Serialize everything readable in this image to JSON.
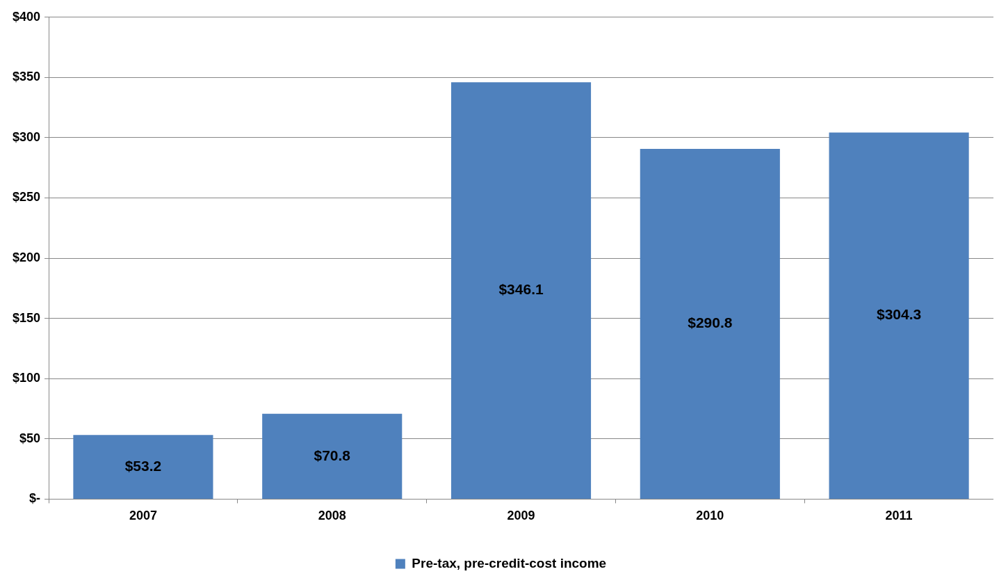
{
  "chart_data": {
    "type": "bar",
    "categories": [
      "2007",
      "2008",
      "2009",
      "2010",
      "2011"
    ],
    "series": [
      {
        "name": "Pre-tax, pre-credit-cost income",
        "color": "#4f81bd",
        "values": [
          53.2,
          70.8,
          346.1,
          290.8,
          304.3
        ],
        "value_labels": [
          "$53.2",
          "$70.8",
          "$346.1",
          "$290.8",
          "$304.3"
        ]
      }
    ],
    "ylim": [
      0,
      400
    ],
    "yticks": [
      {
        "value": 0,
        "label": "$-"
      },
      {
        "value": 50,
        "label": "$50"
      },
      {
        "value": 100,
        "label": "$100"
      },
      {
        "value": 150,
        "label": "$150"
      },
      {
        "value": 200,
        "label": "$200"
      },
      {
        "value": 250,
        "label": "$250"
      },
      {
        "value": 300,
        "label": "$300"
      },
      {
        "value": 350,
        "label": "$350"
      },
      {
        "value": 400,
        "label": "$400"
      }
    ],
    "grid": "y",
    "legend": "bottom"
  }
}
